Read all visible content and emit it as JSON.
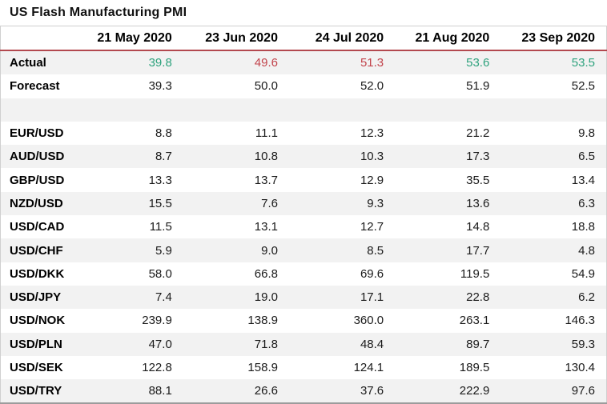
{
  "title": "US Flash Manufacturing PMI",
  "colors": {
    "positive": "#2ea27d",
    "negative": "#c2434b",
    "header_divider": "#b3494f",
    "row_shade": "#f2f2f2",
    "table_border": "#d0d0d0",
    "table_border_bottom": "#9c9c9c",
    "text": "#1a1a1a"
  },
  "chart_data": {
    "type": "table",
    "title": "US Flash Manufacturing PMI",
    "columns": [
      "21 May 2020",
      "23 Jun 2020",
      "24 Jul 2020",
      "21 Aug 2020",
      "23 Sep 2020"
    ],
    "rows": [
      {
        "label": "Actual",
        "values": [
          39.8,
          49.6,
          51.3,
          53.6,
          53.5
        ],
        "value_colors": [
          "positive",
          "negative",
          "negative",
          "positive",
          "positive"
        ]
      },
      {
        "label": "Forecast",
        "values": [
          39.3,
          50.0,
          52.0,
          51.9,
          52.5
        ]
      },
      {
        "label": "",
        "values": [],
        "spacer": true
      },
      {
        "label": "EUR/USD",
        "values": [
          8.8,
          11.1,
          12.3,
          21.2,
          9.8
        ]
      },
      {
        "label": "AUD/USD",
        "values": [
          8.7,
          10.8,
          10.3,
          17.3,
          6.5
        ]
      },
      {
        "label": "GBP/USD",
        "values": [
          13.3,
          13.7,
          12.9,
          35.5,
          13.4
        ]
      },
      {
        "label": "NZD/USD",
        "values": [
          15.5,
          7.6,
          9.3,
          13.6,
          6.3
        ]
      },
      {
        "label": "USD/CAD",
        "values": [
          11.5,
          13.1,
          12.7,
          14.8,
          18.8
        ]
      },
      {
        "label": "USD/CHF",
        "values": [
          5.9,
          9.0,
          8.5,
          17.7,
          4.8
        ]
      },
      {
        "label": "USD/DKK",
        "values": [
          58.0,
          66.8,
          69.6,
          119.5,
          54.9
        ]
      },
      {
        "label": "USD/JPY",
        "values": [
          7.4,
          19.0,
          17.1,
          22.8,
          6.2
        ]
      },
      {
        "label": "USD/NOK",
        "values": [
          239.9,
          138.9,
          360.0,
          263.1,
          146.3
        ]
      },
      {
        "label": "USD/PLN",
        "values": [
          47.0,
          71.8,
          48.4,
          89.7,
          59.3
        ]
      },
      {
        "label": "USD/SEK",
        "values": [
          122.8,
          158.9,
          124.1,
          189.5,
          130.4
        ]
      },
      {
        "label": "USD/TRY",
        "values": [
          88.1,
          26.6,
          37.6,
          222.9,
          97.6
        ]
      }
    ]
  }
}
